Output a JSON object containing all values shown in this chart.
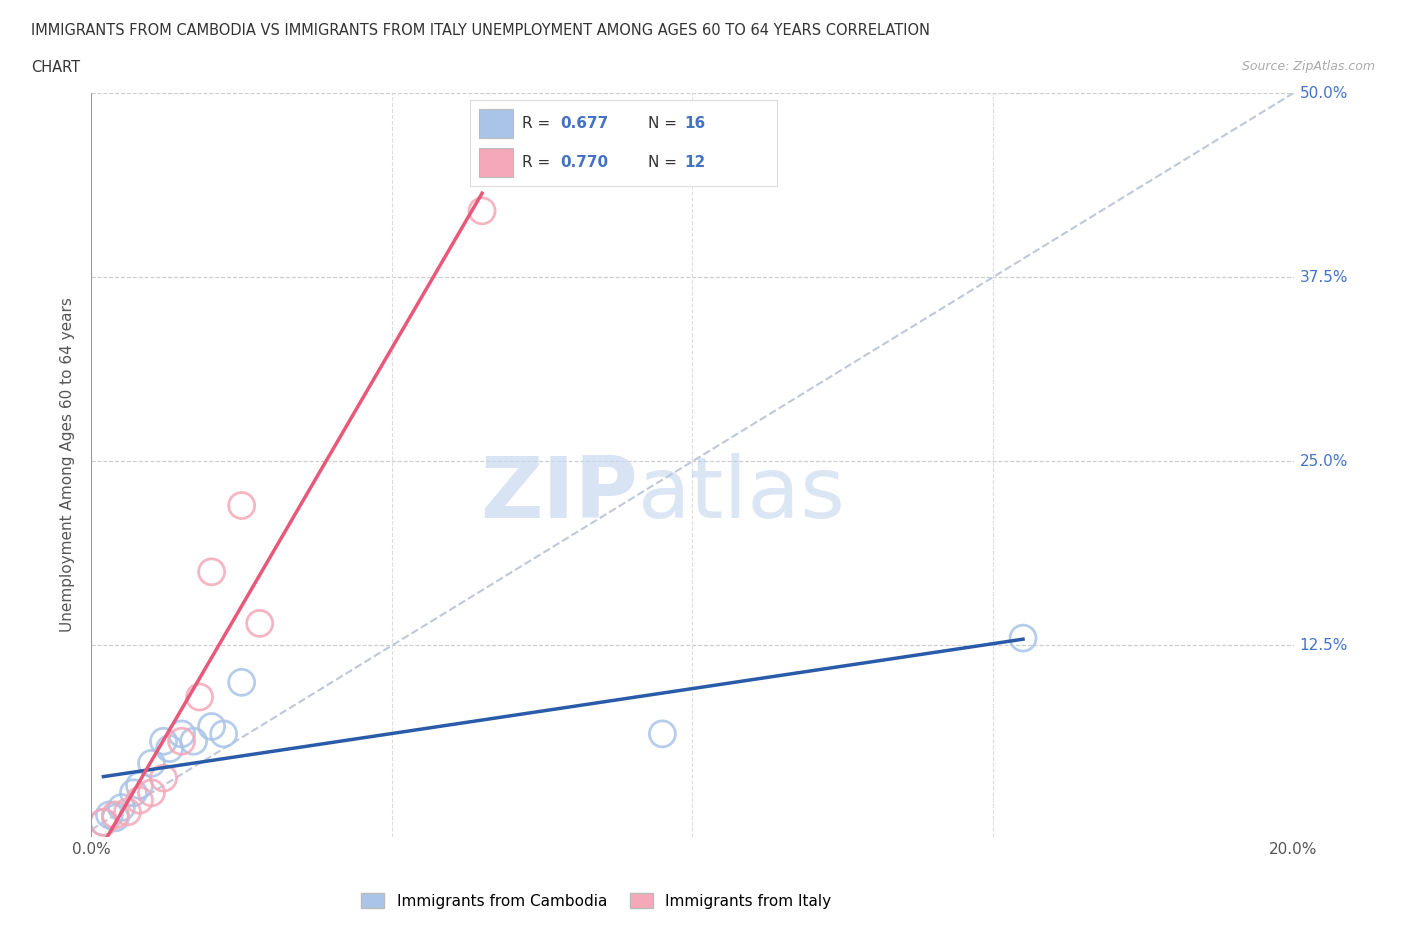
{
  "title_line1": "IMMIGRANTS FROM CAMBODIA VS IMMIGRANTS FROM ITALY UNEMPLOYMENT AMONG AGES 60 TO 64 YEARS CORRELATION",
  "title_line2": "CHART",
  "source": "Source: ZipAtlas.com",
  "ylabel": "Unemployment Among Ages 60 to 64 years",
  "xlim": [
    0.0,
    0.2
  ],
  "ylim": [
    -0.005,
    0.5
  ],
  "xticks": [
    0.0,
    0.05,
    0.1,
    0.15,
    0.2
  ],
  "xticklabels": [
    "0.0%",
    "",
    "",
    "",
    "20.0%"
  ],
  "yticks": [
    0.0,
    0.125,
    0.25,
    0.375,
    0.5
  ],
  "yticklabels": [
    "",
    "12.5%",
    "25.0%",
    "37.5%",
    "50.0%"
  ],
  "cambodia_x": [
    0.002,
    0.003,
    0.004,
    0.005,
    0.007,
    0.008,
    0.01,
    0.012,
    0.013,
    0.015,
    0.017,
    0.02,
    0.022,
    0.025,
    0.095,
    0.155
  ],
  "cambodia_y": [
    0.005,
    0.01,
    0.008,
    0.015,
    0.025,
    0.03,
    0.045,
    0.06,
    0.055,
    0.065,
    0.06,
    0.07,
    0.065,
    0.1,
    0.065,
    0.13
  ],
  "italy_x": [
    0.002,
    0.004,
    0.006,
    0.008,
    0.01,
    0.012,
    0.015,
    0.018,
    0.02,
    0.025,
    0.028,
    0.065
  ],
  "italy_y": [
    0.005,
    0.01,
    0.012,
    0.02,
    0.025,
    0.035,
    0.06,
    0.09,
    0.175,
    0.22,
    0.14,
    0.42
  ],
  "cambodia_color": "#aac4e8",
  "italy_color": "#f4a8b8",
  "cambodia_line_color": "#2a5ba8",
  "italy_line_color": "#e85878",
  "diagonal_color": "#c0c8d8",
  "R_cambodia": 0.677,
  "N_cambodia": 16,
  "R_italy": 0.77,
  "N_italy": 12,
  "watermark_zip": "ZIP",
  "watermark_atlas": "atlas",
  "legend_label_cambodia": "Immigrants from Cambodia",
  "legend_label_italy": "Immigrants from Italy"
}
